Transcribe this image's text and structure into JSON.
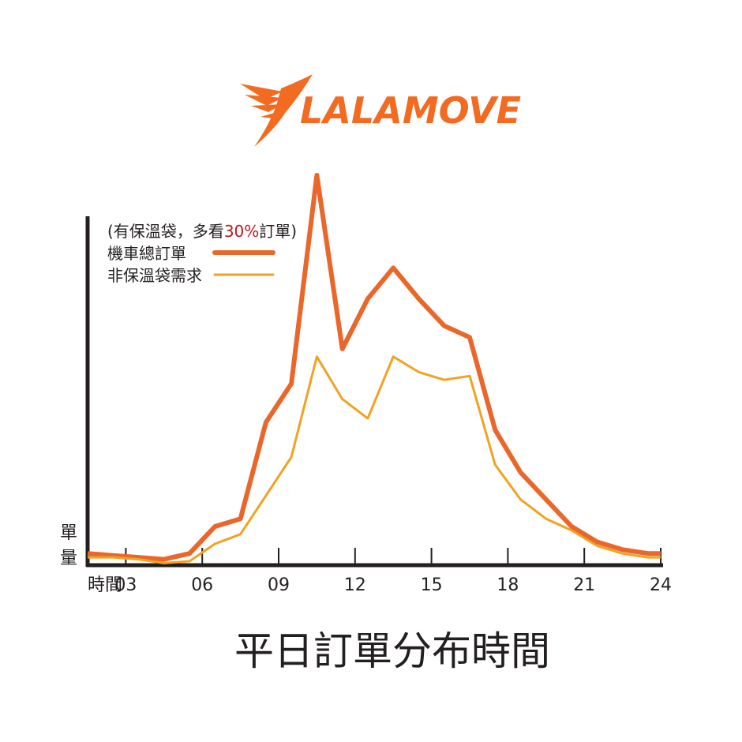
{
  "logo": {
    "text": "LALAMOVE",
    "color": "#f26b21"
  },
  "chart_data": {
    "type": "line",
    "title": "平日訂單分布時間",
    "xlabel": "時間",
    "ylabel_chars": [
      "單",
      "量"
    ],
    "annotation": {
      "prefix": "(有保溫袋，多看",
      "highlight": "30%",
      "suffix": "訂單)",
      "highlight_color": "#c4161c"
    },
    "xlim": [
      1.5,
      24
    ],
    "ylim": [
      0,
      100
    ],
    "x_ticks": [
      3,
      6,
      9,
      12,
      15,
      18,
      21,
      24
    ],
    "x_tick_labels": [
      "03",
      "06",
      "09",
      "12",
      "15",
      "18",
      "21",
      "24"
    ],
    "grid": false,
    "legend_position": "top-left",
    "x": [
      1.5,
      2.5,
      3.5,
      4.5,
      5.5,
      6.5,
      7.5,
      8.5,
      9.5,
      10.5,
      11.5,
      12.5,
      13.5,
      14.5,
      15.5,
      16.5,
      17.5,
      18.5,
      19.5,
      20.5,
      21.5,
      22.5,
      23.5,
      24
    ],
    "series": [
      {
        "name": "機車總訂單",
        "color": "#e9672a",
        "values": [
          2,
          1.5,
          1,
          0.5,
          2,
          9,
          11,
          36,
          46,
          100,
          55,
          68,
          76,
          68,
          61,
          58,
          34,
          23,
          16,
          9,
          5,
          3,
          2,
          2
        ]
      },
      {
        "name": "非保溫袋需求",
        "color": "#f0a322",
        "values": [
          1,
          1,
          0.5,
          -0.5,
          0,
          4.5,
          7,
          17,
          27,
          53,
          42,
          37,
          53,
          49,
          47,
          48,
          25,
          16,
          11,
          8,
          4,
          2,
          1,
          1
        ]
      }
    ]
  }
}
